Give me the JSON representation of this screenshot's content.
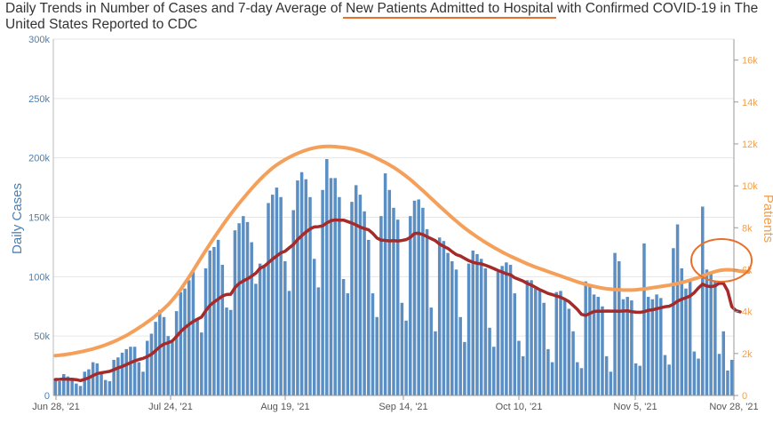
{
  "title": {
    "before": "Daily Trends in Number of Cases and 7-day Average of ",
    "highlight": "New Patients Admitted to Hospital",
    "after": " with Confirmed COVID-19 in The United States Reported to CDC"
  },
  "colors": {
    "bars": "#5b8fc4",
    "cases_avg": "#a52a2a",
    "patients": "#f5a05a",
    "left_axis": "#4a7fb5",
    "right_axis": "#f0a050",
    "annotation": "#e8702a",
    "grid": "#e6e6e6"
  },
  "chart_data": {
    "type": "bar",
    "x_start": "Jun 28, '21",
    "x_end": "Nov 28, '21",
    "x_tick_labels": [
      "Jun 28, '21",
      "Jul 24, '21",
      "Aug 19, '21",
      "Sep 14, '21",
      "Oct 10, '21",
      "Nov 5, '21",
      "Nov 28, '21"
    ],
    "y_left_label": "Daily Cases",
    "y_left_ticks": [
      "0",
      "50k",
      "100k",
      "150k",
      "200k",
      "250k",
      "300k"
    ],
    "y_left_lim": [
      0,
      300000
    ],
    "y_right_label": "Patients",
    "y_right_ticks": [
      "0",
      "2k",
      "4k",
      "6k",
      "8k",
      "10k",
      "12k",
      "14k",
      "16k"
    ],
    "y_right_lim": [
      0,
      17000
    ],
    "grid": true,
    "legend": "none",
    "annotation": "orange circle around the 7-day average of new hospital admissions near Nov 20, '21",
    "series": [
      {
        "type": "bar",
        "axis": "left",
        "values": [
          14000,
          12000,
          18000,
          16000,
          15000,
          10000,
          8000,
          20000,
          22000,
          28000,
          27000,
          20000,
          13000,
          12000,
          30000,
          32000,
          36000,
          39000,
          41000,
          41000,
          28000,
          20000,
          46000,
          52000,
          62000,
          72000,
          66000,
          50000,
          45000,
          71000,
          87000,
          90000,
          97000,
          104000,
          64000,
          53000,
          107000,
          122000,
          125000,
          131000,
          110000,
          74000,
          72000,
          139000,
          145000,
          151000,
          146000,
          129000,
          94000,
          111000,
          110000,
          162000,
          169000,
          175000,
          167000,
          113000,
          88000,
          156000,
          181000,
          188000,
          182000,
          167000,
          115000,
          91000,
          173000,
          199000,
          183000,
          183000,
          167000,
          98000,
          86000,
          163000,
          177000,
          169000,
          155000,
          131000,
          86000,
          66000,
          151000,
          187000,
          173000,
          158000,
          148000,
          78000,
          63000,
          151000,
          164000,
          165000,
          158000,
          140000,
          74000,
          54000,
          133000,
          130000,
          120000,
          113000,
          106000,
          66000,
          45000,
          111000,
          122000,
          119000,
          115000,
          107000,
          57000,
          41000,
          104000,
          109000,
          112000,
          110000,
          86000,
          46000,
          33000,
          97000,
          97000,
          90000,
          88000,
          78000,
          39000,
          28000,
          87000,
          88000,
          81000,
          73000,
          54000,
          28000,
          23000,
          96000,
          92000,
          85000,
          83000,
          75000,
          33000,
          20000,
          120000,
          113000,
          81000,
          83000,
          80000,
          27000,
          25000,
          128000,
          83000,
          81000,
          85000,
          82000,
          34000,
          26000,
          124000,
          144000,
          107000,
          90000,
          98000,
          37000,
          31000,
          159000,
          106000,
          103000,
          96000,
          35000,
          54000,
          21000,
          30000
        ]
      },
      {
        "type": "line",
        "axis": "left",
        "name": "",
        "values": [
          13500,
          13600,
          13800,
          13700,
          13600,
          13300,
          12500,
          13600,
          14900,
          16700,
          18400,
          19100,
          19700,
          20300,
          21700,
          23200,
          24400,
          26000,
          27600,
          29100,
          30300,
          31200,
          32700,
          34700,
          37700,
          40900,
          43300,
          44300,
          45900,
          49600,
          53800,
          57000,
          59800,
          62200,
          64200,
          66000,
          71300,
          75800,
          78700,
          81100,
          83700,
          85000,
          85200,
          90800,
          94300,
          96400,
          98200,
          100500,
          102900,
          107100,
          108700,
          111700,
          114800,
          117400,
          120100,
          121400,
          124300,
          127100,
          131200,
          134500,
          137600,
          140200,
          141900,
          142100,
          142800,
          145300,
          147100,
          147800,
          147600,
          147600,
          146400,
          145100,
          143600,
          141700,
          140500,
          139500,
          136500,
          132600,
          130800,
          130500,
          130100,
          130400,
          130000,
          130500,
          131200,
          133000,
          136400,
          136500,
          135500,
          133700,
          132000,
          130300,
          127500,
          125500,
          123800,
          121100,
          118600,
          117400,
          115400,
          113500,
          112100,
          111200,
          110800,
          109600,
          108300,
          106800,
          105200,
          103900,
          102400,
          101600,
          99100,
          97700,
          96300,
          94300,
          92900,
          91000,
          89000,
          87500,
          85900,
          84900,
          83700,
          82700,
          81000,
          79000,
          75800,
          72500,
          68300,
          67400,
          69100,
          70700,
          71000,
          70900,
          71100,
          71000,
          71000,
          70900,
          71100,
          71300,
          70500,
          70100,
          70000,
          70500,
          71700,
          72100,
          73000,
          73800,
          74700,
          75100,
          76800,
          79400,
          81000,
          82300,
          83700,
          86500,
          90500,
          93700,
          92100,
          91600,
          92300,
          94500,
          94400,
          88100,
          74700,
          71400,
          70400
        ]
      },
      {
        "type": "line",
        "axis": "right",
        "name": "",
        "values": [
          1900,
          1920,
          1940,
          1970,
          2000,
          2040,
          2080,
          2120,
          2170,
          2220,
          2280,
          2340,
          2410,
          2490,
          2570,
          2660,
          2760,
          2860,
          2980,
          3100,
          3230,
          3360,
          3500,
          3640,
          3800,
          3960,
          4140,
          4330,
          4550,
          4790,
          5060,
          5350,
          5650,
          5960,
          6280,
          6600,
          6910,
          7220,
          7520,
          7810,
          8100,
          8380,
          8650,
          8910,
          9160,
          9400,
          9640,
          9870,
          10090,
          10300,
          10500,
          10680,
          10850,
          11000,
          11130,
          11250,
          11360,
          11460,
          11550,
          11630,
          11700,
          11760,
          11810,
          11850,
          11870,
          11880,
          11880,
          11870,
          11850,
          11830,
          11800,
          11760,
          11710,
          11650,
          11580,
          11500,
          11410,
          11310,
          11210,
          11110,
          11000,
          10880,
          10750,
          10610,
          10460,
          10300,
          10130,
          9950,
          9770,
          9590,
          9400,
          9220,
          9030,
          8850,
          8670,
          8490,
          8320,
          8150,
          7990,
          7840,
          7700,
          7560,
          7430,
          7300,
          7180,
          7060,
          6950,
          6840,
          6740,
          6640,
          6550,
          6460,
          6370,
          6280,
          6200,
          6120,
          6050,
          5980,
          5910,
          5840,
          5770,
          5700,
          5630,
          5560,
          5490,
          5420,
          5360,
          5300,
          5250,
          5200,
          5160,
          5120,
          5090,
          5070,
          5050,
          5040,
          5030,
          5030,
          5030,
          5040,
          5060,
          5080,
          5110,
          5140,
          5170,
          5200,
          5230,
          5260,
          5300,
          5340,
          5390,
          5440,
          5500,
          5560,
          5620,
          5700,
          5780,
          5850,
          5910,
          5960,
          5990,
          6000,
          5990,
          5960,
          5930,
          5900,
          5880
        ]
      }
    ]
  }
}
